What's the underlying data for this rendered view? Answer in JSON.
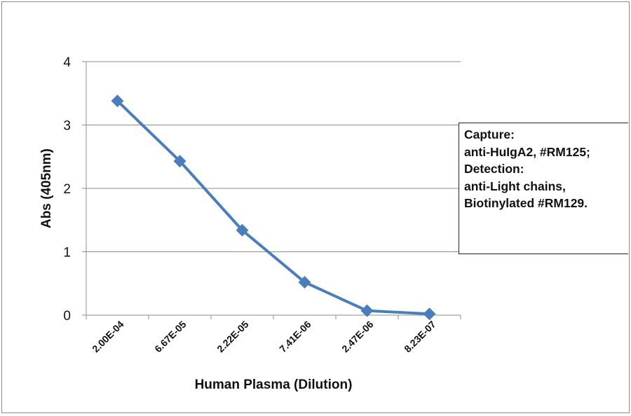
{
  "chart_data": {
    "type": "line",
    "title": "",
    "xlabel": "Human Plasma (Dilution)",
    "ylabel": "Abs (405nm)",
    "categories": [
      "2.00E-04",
      "6.67E-05",
      "2.22E-05",
      "7.41E-06",
      "2.47E-06",
      "8.23E-07"
    ],
    "series": [
      {
        "values": [
          3.38,
          2.43,
          1.34,
          0.52,
          0.07,
          0.02
        ],
        "color": "#4a7ebb",
        "marker": "diamond"
      }
    ],
    "ylim": [
      0,
      4
    ],
    "yticks": [
      0,
      1,
      2,
      3,
      4
    ],
    "grid": true,
    "legend": "none",
    "annotation": [
      "Capture:",
      "anti-HuIgA2, #RM125;",
      "Detection:",
      "anti-Light chains,",
      "Biotinylated #RM129."
    ]
  }
}
